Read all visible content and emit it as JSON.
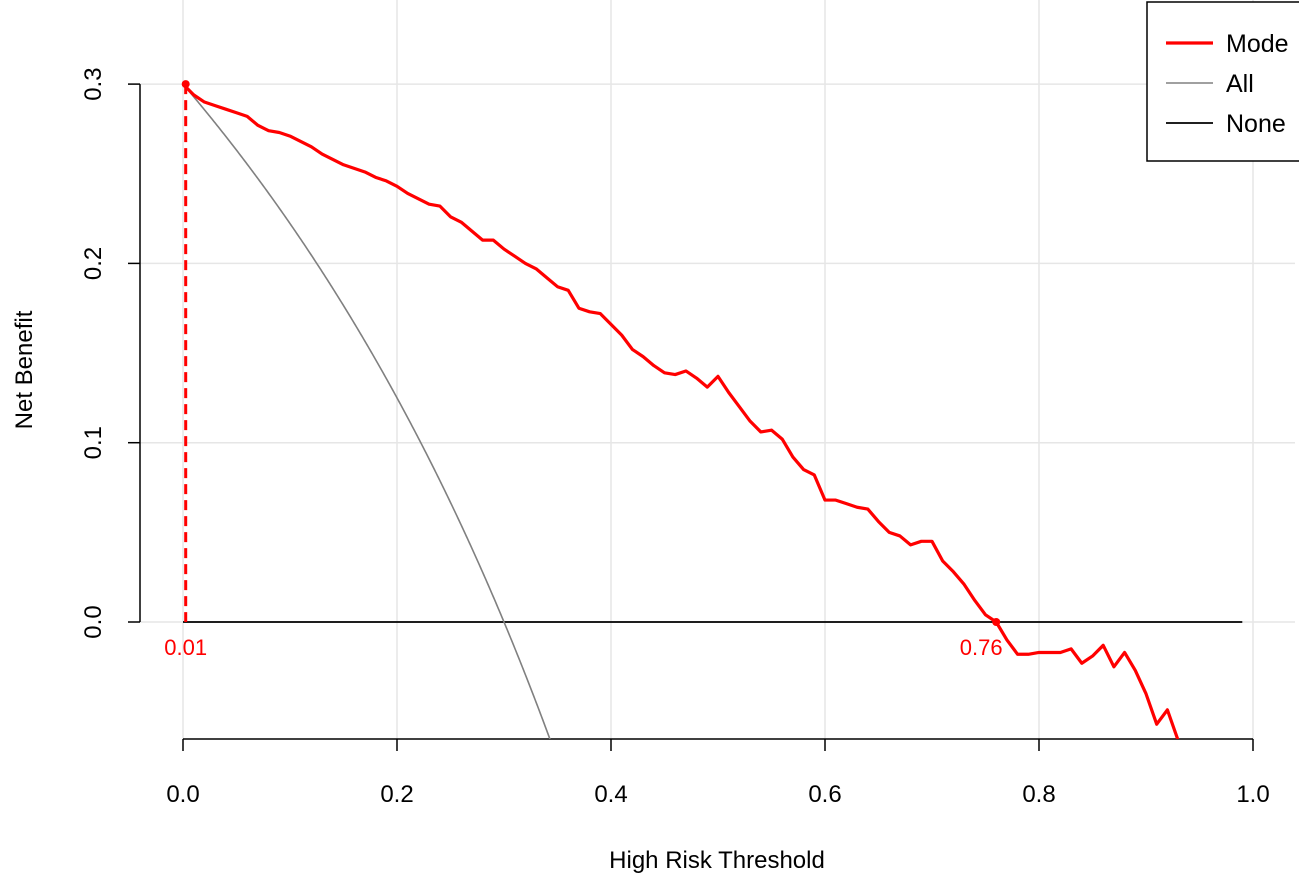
{
  "chart_data": {
    "type": "line",
    "xlabel": "High Risk Threshold",
    "ylabel": "Net Benefit",
    "xlim": [
      0,
      1
    ],
    "ylim": [
      -0.065,
      0.335
    ],
    "x_ticks": [
      "0.0",
      "0.2",
      "0.4",
      "0.6",
      "0.8",
      "1.0"
    ],
    "y_ticks": [
      "0.0",
      "0.1",
      "0.2",
      "0.3"
    ],
    "grid": true,
    "legend_position": "top-right",
    "legend": [
      "Mode",
      "All",
      "None"
    ],
    "series": [
      {
        "name": "Mode",
        "color": "#ff0000",
        "x": [
          0.0,
          0.01,
          0.02,
          0.03,
          0.04,
          0.05,
          0.06,
          0.07,
          0.08,
          0.09,
          0.1,
          0.11,
          0.12,
          0.13,
          0.14,
          0.15,
          0.16,
          0.17,
          0.18,
          0.19,
          0.2,
          0.21,
          0.22,
          0.23,
          0.24,
          0.25,
          0.26,
          0.27,
          0.28,
          0.29,
          0.3,
          0.31,
          0.32,
          0.33,
          0.34,
          0.35,
          0.36,
          0.37,
          0.38,
          0.39,
          0.4,
          0.41,
          0.42,
          0.43,
          0.44,
          0.45,
          0.46,
          0.47,
          0.48,
          0.49,
          0.5,
          0.51,
          0.52,
          0.53,
          0.54,
          0.55,
          0.56,
          0.57,
          0.58,
          0.59,
          0.6,
          0.61,
          0.62,
          0.63,
          0.64,
          0.65,
          0.66,
          0.67,
          0.68,
          0.69,
          0.7,
          0.71,
          0.72,
          0.73,
          0.74,
          0.75,
          0.76,
          0.77,
          0.78,
          0.79,
          0.8,
          0.81,
          0.82,
          0.83,
          0.84,
          0.85,
          0.86,
          0.87,
          0.88,
          0.89,
          0.9,
          0.91,
          0.92,
          0.93
        ],
        "y": [
          0.3,
          0.294,
          0.29,
          0.288,
          0.286,
          0.284,
          0.282,
          0.277,
          0.274,
          0.273,
          0.271,
          0.268,
          0.265,
          0.261,
          0.258,
          0.255,
          0.253,
          0.251,
          0.248,
          0.246,
          0.243,
          0.239,
          0.236,
          0.233,
          0.232,
          0.226,
          0.223,
          0.218,
          0.213,
          0.213,
          0.208,
          0.204,
          0.2,
          0.197,
          0.192,
          0.187,
          0.185,
          0.175,
          0.173,
          0.172,
          0.166,
          0.16,
          0.152,
          0.148,
          0.143,
          0.139,
          0.138,
          0.14,
          0.136,
          0.131,
          0.137,
          0.128,
          0.12,
          0.112,
          0.106,
          0.107,
          0.102,
          0.092,
          0.085,
          0.082,
          0.068,
          0.068,
          0.066,
          0.064,
          0.063,
          0.056,
          0.05,
          0.048,
          0.043,
          0.045,
          0.045,
          0.034,
          0.028,
          0.021,
          0.012,
          0.004,
          0.0,
          -0.01,
          -0.018,
          -0.018,
          -0.017,
          -0.017,
          -0.017,
          -0.015,
          -0.023,
          -0.019,
          -0.013,
          -0.025,
          -0.017,
          -0.027,
          -0.04,
          -0.057,
          -0.049,
          -0.066
        ]
      },
      {
        "name": "All",
        "color": "#808080",
        "prevalence": 0.3
      },
      {
        "name": "None",
        "color": "#000000",
        "y_constant": 0.0
      }
    ],
    "annotations": [
      {
        "text": "0.01",
        "x": 0.01,
        "y": 0.0,
        "color": "#ff0000"
      },
      {
        "text": "0.76",
        "x": 0.76,
        "y": 0.0,
        "color": "#ff0000"
      }
    ],
    "reference_line": {
      "x": 0.01,
      "y_from": 0.0,
      "y_to": 0.3,
      "style": "dashed",
      "color": "#ff0000"
    }
  }
}
